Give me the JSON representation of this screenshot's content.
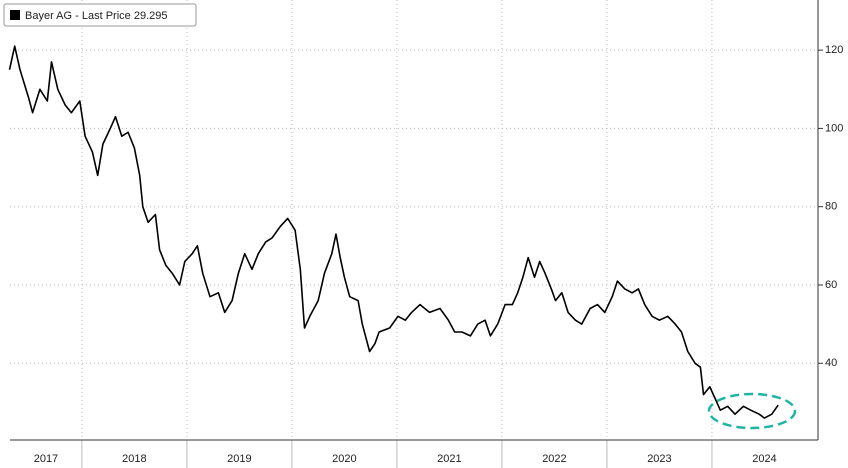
{
  "chart_data": {
    "type": "line",
    "series": [
      {
        "name": "Bayer AG - Last Price",
        "color": "#000000",
        "x": [
          2017.31,
          2017.36,
          2017.41,
          2017.49,
          2017.53,
          2017.6,
          2017.67,
          2017.71,
          2017.77,
          2017.84,
          2017.9,
          2017.98,
          2018.03,
          2018.1,
          2018.15,
          2018.2,
          2018.27,
          2018.32,
          2018.38,
          2018.44,
          2018.5,
          2018.55,
          2018.58,
          2018.63,
          2018.7,
          2018.74,
          2018.8,
          2018.86,
          2018.93,
          2018.98,
          2019.05,
          2019.1,
          2019.15,
          2019.22,
          2019.3,
          2019.36,
          2019.43,
          2019.49,
          2019.55,
          2019.62,
          2019.68,
          2019.75,
          2019.81,
          2019.89,
          2019.96,
          2020.03,
          2020.08,
          2020.12,
          2020.17,
          2020.25,
          2020.31,
          2020.38,
          2020.42,
          2020.46,
          2020.5,
          2020.55,
          2020.63,
          2020.67,
          2020.74,
          2020.79,
          2020.83,
          2020.93,
          2021.01,
          2021.08,
          2021.14,
          2021.22,
          2021.31,
          2021.41,
          2021.49,
          2021.55,
          2021.62,
          2021.7,
          2021.77,
          2021.84,
          2021.89,
          2021.96,
          2022.03,
          2022.1,
          2022.15,
          2022.2,
          2022.25,
          2022.31,
          2022.36,
          2022.41,
          2022.47,
          2022.51,
          2022.57,
          2022.63,
          2022.7,
          2022.76,
          2022.84,
          2022.91,
          2022.98,
          2023.05,
          2023.1,
          2023.17,
          2023.24,
          2023.3,
          2023.36,
          2023.43,
          2023.5,
          2023.58,
          2023.65,
          2023.71,
          2023.77,
          2023.84,
          2023.89,
          2023.92,
          2023.98,
          2024.03,
          2024.08,
          2024.15,
          2024.22,
          2024.3,
          2024.37,
          2024.45,
          2024.5,
          2024.57,
          2024.63
        ],
        "values": [
          115,
          121,
          115,
          108,
          104,
          110,
          107,
          117,
          110,
          106,
          104,
          107,
          98,
          94,
          88,
          96,
          100,
          103,
          98,
          99,
          95,
          88,
          80,
          76,
          78,
          69,
          65,
          63,
          60,
          66,
          68,
          70,
          63,
          57,
          58,
          53,
          56,
          63,
          68,
          64,
          68,
          71,
          72,
          75,
          77,
          74,
          64,
          49,
          52,
          56,
          63,
          68,
          73,
          67,
          62,
          57,
          56,
          50,
          43,
          45,
          48,
          49,
          52,
          51,
          53,
          55,
          53,
          54,
          51,
          48,
          48,
          47,
          50,
          51,
          47,
          50,
          55,
          55,
          58,
          62,
          67,
          62,
          66,
          63,
          59,
          56,
          58,
          53,
          51,
          50,
          54,
          55,
          53,
          57,
          61,
          59,
          58,
          59,
          55,
          52,
          51,
          52,
          50,
          48,
          43,
          40,
          39,
          32,
          34,
          31,
          28,
          29,
          27,
          29,
          28,
          27,
          26,
          27,
          29.295
        ]
      }
    ],
    "year_labels": [
      "2017",
      "2018",
      "2019",
      "2020",
      "2021",
      "2022",
      "2023",
      "2024"
    ],
    "xlim": [
      2017.22,
      2025.01
    ],
    "xticks": [
      2018,
      2019,
      2020,
      2021,
      2022,
      2023,
      2024
    ],
    "ylim": [
      20.4,
      132.8
    ],
    "yticks": [
      40,
      60,
      80,
      100,
      120
    ],
    "grid": true
  }
}
